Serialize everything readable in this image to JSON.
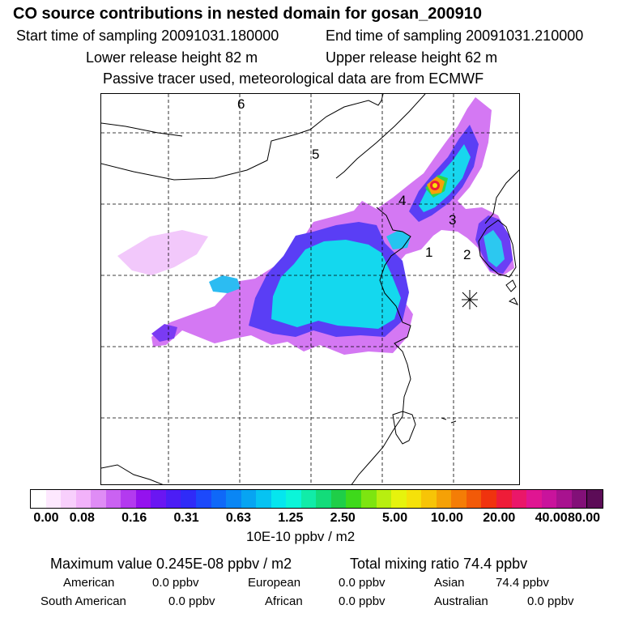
{
  "header": {
    "title": "CO  source contributions in nested domain for gosan_200910",
    "start_time": "Start time of sampling 20091031.180000",
    "end_time": "End time of sampling 20091031.210000",
    "lower_release": "Lower release height   82 m",
    "upper_release": "Upper release height   62 m",
    "tracer_note": "Passive tracer used, meteorological data are from ECMWF"
  },
  "map": {
    "region_labels": [
      "6",
      "5",
      "4",
      "3",
      "1",
      "2"
    ],
    "marker_icon": "receptor-star-icon"
  },
  "colorbar": {
    "tick_labels": [
      "0.00",
      "0.08",
      "0.16",
      "0.31",
      "0.63",
      "1.25",
      "2.50",
      "5.00",
      "10.00",
      "20.00",
      "40.00",
      "80.00"
    ],
    "colors": [
      "#ffffff",
      "#fde8fe",
      "#f8cffc",
      "#f2b2fa",
      "#df8cf5",
      "#ca62f2",
      "#b33aef",
      "#9412ee",
      "#6a16f2",
      "#4c1df5",
      "#2f2bf8",
      "#1c49fb",
      "#0f68f8",
      "#0a86f4",
      "#07a4f2",
      "#06c3f2",
      "#05e6ee",
      "#0bf5d9",
      "#11eca8",
      "#13dc7a",
      "#1fce48",
      "#3ed91b",
      "#7de510",
      "#b8ee10",
      "#e6f30d",
      "#f5e10a",
      "#f7c407",
      "#f5a106",
      "#f47d06",
      "#f25a08",
      "#f0330e",
      "#ee1c38",
      "#ea1769",
      "#e01592",
      "#c9139c",
      "#a8128f",
      "#821078",
      "#5c0c57"
    ],
    "unit": "10E-10 ppbv / m2"
  },
  "summary": {
    "maximum_value": "Maximum value  0.245E-08 ppbv / m2",
    "total_mixing_ratio": "Total mixing ratio       74.4 ppbv",
    "sources": [
      {
        "name": "American",
        "value": "0.0 ppbv"
      },
      {
        "name": "European",
        "value": "0.0 ppbv"
      },
      {
        "name": "Asian",
        "value": "74.4 ppbv"
      },
      {
        "name": "South American",
        "value": "0.0 ppbv"
      },
      {
        "name": "African",
        "value": "0.0 ppbv"
      },
      {
        "name": "Australian",
        "value": "0.0 ppbv"
      }
    ]
  }
}
